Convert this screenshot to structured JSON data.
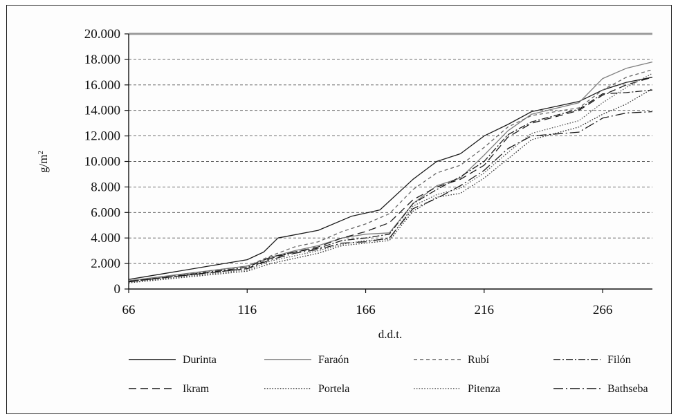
{
  "chart_data": {
    "type": "line",
    "title": "",
    "xlabel": "d.d.t.",
    "ylabel": "g/m",
    "ylabel_superscript": "2",
    "xlim": [
      66,
      287
    ],
    "ylim": [
      0,
      20000
    ],
    "grid": "horizontal dashed",
    "legend_position": "bottom",
    "x_ticks": [
      {
        "value": 66,
        "label": "66"
      },
      {
        "value": 116,
        "label": "116"
      },
      {
        "value": 166,
        "label": "166"
      },
      {
        "value": 216,
        "label": "216"
      },
      {
        "value": 266,
        "label": "266"
      }
    ],
    "y_ticks": [
      {
        "value": 0,
        "label": "0"
      },
      {
        "value": 2000,
        "label": "2.000"
      },
      {
        "value": 4000,
        "label": "4.000"
      },
      {
        "value": 6000,
        "label": "6.000"
      },
      {
        "value": 8000,
        "label": "8.000"
      },
      {
        "value": 10000,
        "label": "10.000"
      },
      {
        "value": 12000,
        "label": "12.000"
      },
      {
        "value": 14000,
        "label": "14.000"
      },
      {
        "value": 16000,
        "label": "16.000"
      },
      {
        "value": 18000,
        "label": "18.000"
      },
      {
        "value": 20000,
        "label": "20.000"
      }
    ],
    "series": [
      {
        "name": "Durinta",
        "style": "solid",
        "color": "#1a1a1a",
        "x": [
          66,
          116,
          123,
          129,
          146,
          160,
          172,
          186,
          196,
          206,
          216,
          226,
          236,
          256,
          266,
          276,
          287
        ],
        "y": [
          750,
          2300,
          2900,
          4000,
          4600,
          5700,
          6200,
          8600,
          10000,
          10600,
          12000,
          12900,
          13900,
          14700,
          15600,
          16200,
          16600
        ]
      },
      {
        "name": "Faraón",
        "style": "solid",
        "color": "#7d7d7d",
        "x": [
          66,
          116,
          126,
          136,
          146,
          156,
          166,
          176,
          186,
          196,
          206,
          216,
          226,
          236,
          256,
          266,
          276,
          287
        ],
        "y": [
          650,
          1800,
          2500,
          3000,
          3400,
          4000,
          4300,
          4400,
          6700,
          8100,
          8700,
          10500,
          12400,
          13700,
          14600,
          16500,
          17300,
          17800
        ]
      },
      {
        "name": "Rubí",
        "style": "dashed",
        "color": "#666666",
        "x": [
          66,
          116,
          126,
          136,
          146,
          156,
          166,
          176,
          186,
          196,
          206,
          216,
          226,
          236,
          256,
          266,
          276,
          287
        ],
        "y": [
          600,
          1800,
          2600,
          3300,
          3700,
          4500,
          5100,
          5900,
          7800,
          9100,
          9700,
          11100,
          12700,
          13600,
          14200,
          15600,
          16600,
          17200
        ]
      },
      {
        "name": "Filón",
        "style": "dashdot",
        "color": "#1a1a1a",
        "x": [
          66,
          116,
          126,
          136,
          146,
          156,
          166,
          176,
          186,
          196,
          206,
          216,
          226,
          236,
          256,
          266,
          276,
          287
        ],
        "y": [
          560,
          1700,
          2500,
          2900,
          3200,
          3800,
          4000,
          4300,
          6700,
          7800,
          8800,
          10000,
          12100,
          13100,
          14100,
          15300,
          15400,
          15600
        ]
      },
      {
        "name": "Ikram",
        "style": "longdash",
        "color": "#1a1a1a",
        "x": [
          66,
          116,
          126,
          136,
          146,
          156,
          166,
          176,
          186,
          196,
          206,
          216,
          226,
          236,
          256,
          266,
          276,
          287
        ],
        "y": [
          600,
          1600,
          2400,
          2900,
          3300,
          4000,
          4500,
          5200,
          7000,
          8000,
          8600,
          9700,
          11900,
          13000,
          14000,
          15200,
          16000,
          16600
        ]
      },
      {
        "name": "Portela",
        "style": "dotted",
        "color": "#333333",
        "x": [
          66,
          116,
          126,
          136,
          146,
          156,
          166,
          176,
          186,
          196,
          206,
          216,
          226,
          236,
          256,
          266,
          276,
          287
        ],
        "y": [
          480,
          1400,
          2000,
          2400,
          2800,
          3400,
          3600,
          3800,
          6100,
          7200,
          7500,
          8700,
          10200,
          11700,
          12700,
          13700,
          14500,
          15700
        ]
      },
      {
        "name": "Pitenza",
        "style": "dotted",
        "color": "#555555",
        "x": [
          66,
          116,
          126,
          136,
          146,
          156,
          166,
          176,
          186,
          196,
          206,
          216,
          226,
          236,
          256,
          266,
          276,
          287
        ],
        "y": [
          520,
          1500,
          2200,
          2600,
          3000,
          3500,
          3800,
          3900,
          6500,
          7400,
          7900,
          9100,
          10700,
          12200,
          13200,
          14600,
          15800,
          16900
        ]
      },
      {
        "name": "Bathseba",
        "style": "dashdotlong",
        "color": "#1a1a1a",
        "x": [
          66,
          116,
          126,
          136,
          146,
          156,
          166,
          176,
          186,
          196,
          206,
          216,
          226,
          236,
          256,
          266,
          276,
          287
        ],
        "y": [
          580,
          1600,
          2300,
          2800,
          3100,
          3600,
          3700,
          4000,
          6300,
          7100,
          8100,
          9300,
          11000,
          12000,
          12300,
          13400,
          13800,
          13900
        ]
      }
    ]
  }
}
